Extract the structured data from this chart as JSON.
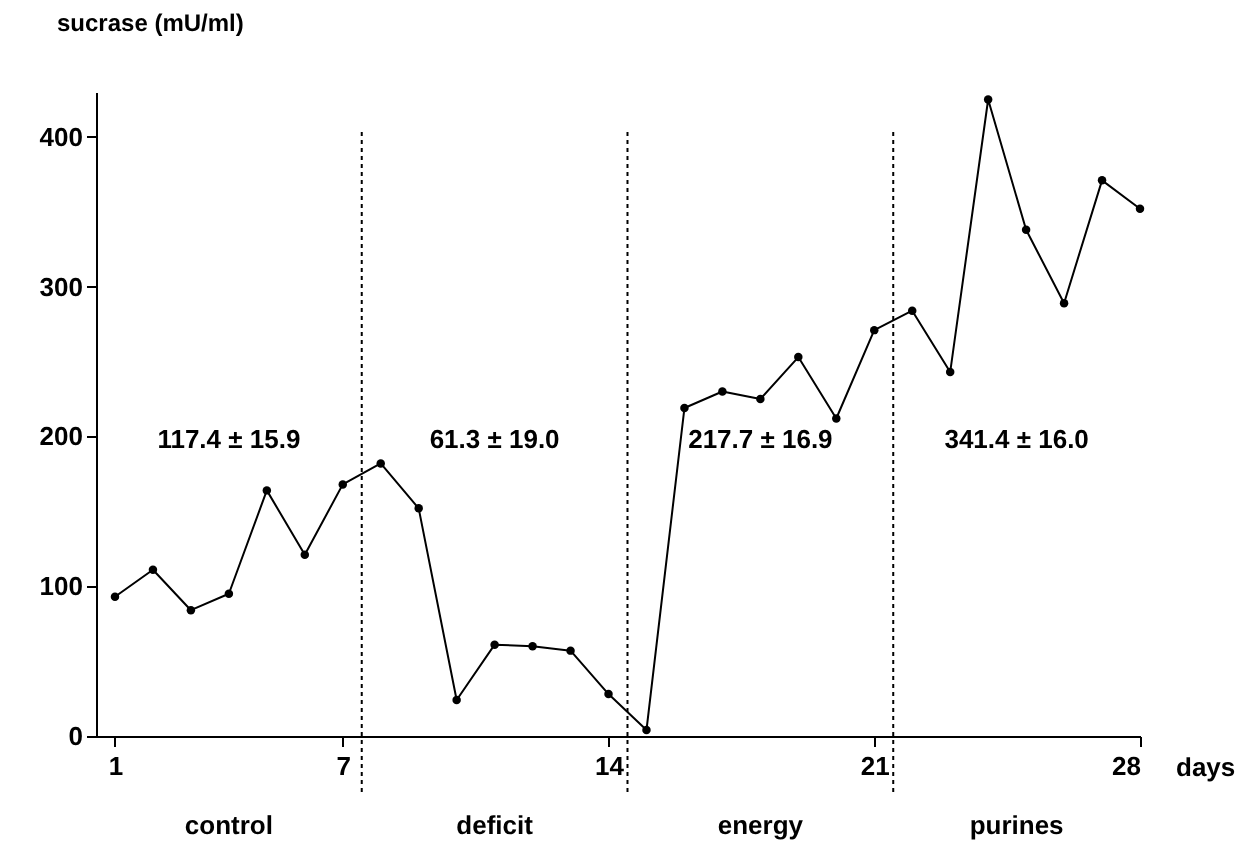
{
  "chart_data": {
    "type": "line",
    "ylabel": "sucrase (mU/ml)",
    "xlabel": "days",
    "x": [
      1,
      2,
      3,
      4,
      5,
      6,
      7,
      8,
      9,
      10,
      11,
      12,
      13,
      14,
      15,
      16,
      17,
      18,
      19,
      20,
      21,
      22,
      23,
      24,
      25,
      26,
      27,
      28
    ],
    "series": [
      {
        "color": "#000000",
        "values": [
          93,
          111,
          84,
          95,
          164,
          121,
          168,
          182,
          152,
          24,
          61,
          60,
          57,
          28,
          4,
          219,
          230,
          225,
          253,
          212,
          271,
          284,
          243,
          425,
          338,
          289,
          371,
          352
        ]
      }
    ],
    "xlim": [
      0.5,
      28
    ],
    "ylim": [
      0,
      430
    ],
    "xticks": [
      1,
      7,
      14,
      21,
      28
    ],
    "yticks": [
      0,
      100,
      200,
      300,
      400
    ],
    "grid": false,
    "marker": "circle",
    "line_style": "solid",
    "ref_lines": [
      {
        "axis": "x",
        "value": 7.5,
        "line_style": "dotted",
        "color": "#000000"
      },
      {
        "axis": "x",
        "value": 14.5,
        "line_style": "dotted",
        "color": "#000000"
      },
      {
        "axis": "x",
        "value": 21.5,
        "line_style": "dotted",
        "color": "#000000"
      }
    ],
    "annotations": [
      "117.4 ± 15.9",
      "61.3 ± 19.0",
      "217.7 ± 16.9",
      "341.4 ± 16.0",
      "control",
      "deficit",
      "energy",
      "purines"
    ]
  }
}
